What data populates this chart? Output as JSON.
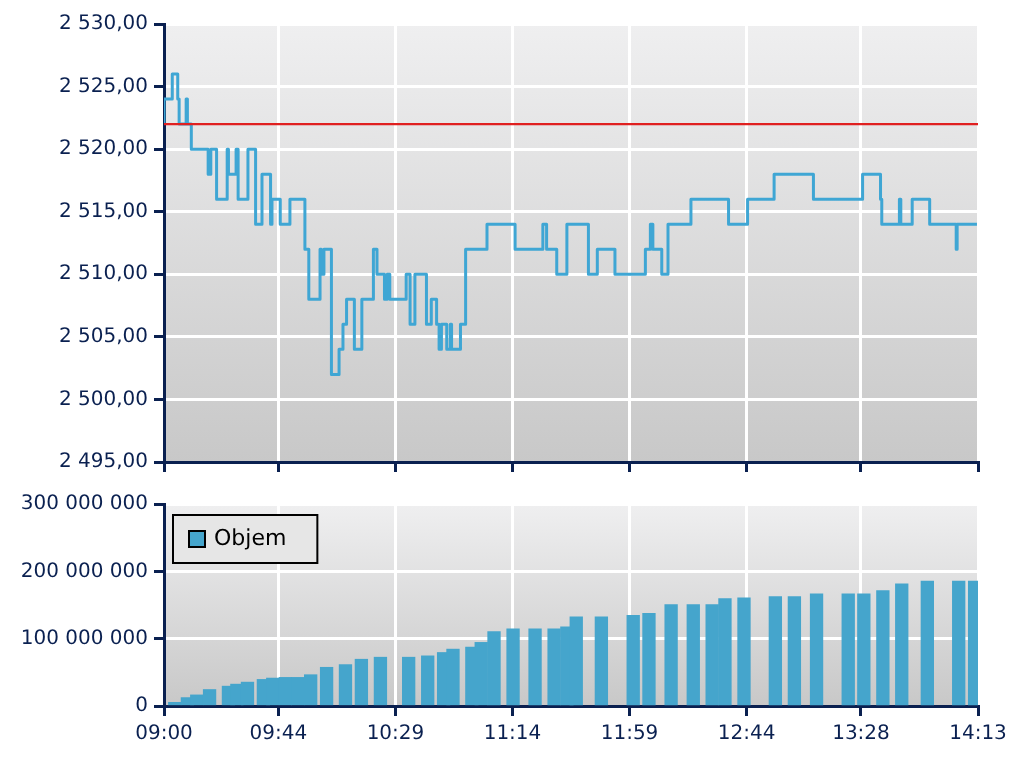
{
  "chart_data": [
    {
      "type": "step",
      "color": "#3fa6d4",
      "marker": "none",
      "grid": true,
      "tick_labels": "y",
      "x": [
        9.0,
        9.053,
        9.088,
        9.097,
        9.142,
        9.15,
        9.175,
        9.283,
        9.3,
        9.337,
        9.405,
        9.413,
        9.462,
        9.475,
        9.538,
        9.587,
        9.628,
        9.683,
        9.692,
        9.745,
        9.807,
        9.903,
        9.928,
        10.0,
        10.008,
        10.025,
        10.073,
        10.122,
        10.147,
        10.17,
        10.22,
        10.268,
        10.342,
        10.365,
        10.413,
        10.43,
        10.447,
        10.552,
        10.577,
        10.608,
        10.682,
        10.713,
        10.747,
        10.763,
        10.778,
        10.812,
        10.835,
        10.843,
        10.9,
        10.933,
        11.07,
        11.25,
        11.428,
        11.452,
        11.517,
        11.582,
        11.72,
        11.777,
        11.89,
        12.085,
        12.117,
        12.133,
        12.19,
        12.23,
        12.377,
        12.618,
        12.74,
        12.91,
        13.162,
        13.477,
        13.592,
        13.6,
        13.713,
        13.722,
        13.795,
        13.907,
        14.077,
        14.083,
        14.125,
        14.21
      ],
      "values": [
        2522,
        2524,
        2526,
        2524,
        2522,
        2524,
        2522,
        2520,
        2518,
        2520,
        2516,
        2520,
        2518,
        2520,
        2516,
        2520,
        2514,
        2518,
        2514,
        2516,
        2514,
        2516,
        2512,
        2508,
        2512,
        2510,
        2512,
        2502,
        2504,
        2506,
        2508,
        2504,
        2508,
        2512,
        2510,
        2508,
        2510,
        2508,
        2510,
        2506,
        2510,
        2506,
        2508,
        2506,
        2504,
        2506,
        2504,
        2506,
        2504,
        2506,
        2512,
        2514,
        2512,
        2514,
        2512,
        2510,
        2514,
        2510,
        2512,
        2510,
        2512,
        2514,
        2512,
        2510,
        2514,
        2516,
        2514,
        2516,
        2518,
        2516,
        2518,
        2516,
        2514,
        2516,
        2514,
        2516,
        2514,
        2512,
        2514,
        2514
      ],
      "xlim": [
        9,
        14.2167
      ],
      "xticks": [
        {
          "value": 9,
          "label": null
        },
        {
          "value": 9.7333,
          "label": null
        },
        {
          "value": 10.4833,
          "label": null
        },
        {
          "value": 11.2333,
          "label": null
        },
        {
          "value": 11.9833,
          "label": null
        },
        {
          "value": 12.7333,
          "label": null
        },
        {
          "value": 13.4667,
          "label": null
        },
        {
          "value": 14.2167,
          "label": null
        }
      ],
      "ylim": [
        2495,
        2530
      ],
      "yticks": [
        {
          "value": 2495,
          "label": "2 495,00"
        },
        {
          "value": 2500,
          "label": "2 500,00"
        },
        {
          "value": 2505,
          "label": "2 505,00"
        },
        {
          "value": 2510,
          "label": "2 510,00"
        },
        {
          "value": 2515,
          "label": "2 515,00"
        },
        {
          "value": 2520,
          "label": "2 520,00"
        },
        {
          "value": 2525,
          "label": "2 525,00"
        },
        {
          "value": 2530,
          "label": "2 530,00"
        }
      ],
      "ref_lines": [
        {
          "axis": "y",
          "value": 2522,
          "color": "#e02020"
        }
      ]
    },
    {
      "type": "bar",
      "grid": true,
      "legend": "top left",
      "x": [
        9.069,
        9.15,
        9.21,
        9.292,
        9.413,
        9.467,
        9.535,
        9.637,
        9.697,
        9.778,
        9.858,
        9.94,
        10.042,
        10.163,
        10.265,
        10.387,
        10.568,
        10.69,
        10.792,
        10.852,
        10.973,
        11.033,
        11.115,
        11.237,
        11.378,
        11.5,
        11.582,
        11.642,
        11.803,
        12.007,
        12.108,
        12.25,
        12.392,
        12.513,
        12.595,
        12.717,
        12.918,
        13.04,
        13.182,
        13.385,
        13.485,
        13.607,
        13.728,
        13.892,
        14.093,
        14.195
      ],
      "series": [
        {
          "name": "Objem",
          "color": "#45a5cc",
          "values": [
            5000000,
            12000000,
            16000000,
            24000000,
            29000000,
            32000000,
            35000000,
            39000000,
            41000000,
            42000000,
            42000000,
            46000000,
            57000000,
            61000000,
            69000000,
            72000000,
            72000000,
            74000000,
            79000000,
            84000000,
            87000000,
            94000000,
            110000000,
            114000000,
            114000000,
            114000000,
            117000000,
            132000000,
            132000000,
            134000000,
            137000000,
            150000000,
            150000000,
            150000000,
            159000000,
            160000000,
            162000000,
            162000000,
            166000000,
            166000000,
            166000000,
            171000000,
            181000000,
            185000000,
            185000000,
            185000000
          ]
        }
      ],
      "xlim": [
        9,
        14.2167
      ],
      "xticks": [
        {
          "value": 9,
          "label": "09:00"
        },
        {
          "value": 9.7333,
          "label": "09:44"
        },
        {
          "value": 10.4833,
          "label": "10:29"
        },
        {
          "value": 11.2333,
          "label": "11:14"
        },
        {
          "value": 11.9833,
          "label": "11:59"
        },
        {
          "value": 12.7333,
          "label": "12:44"
        },
        {
          "value": 13.4667,
          "label": "13:28"
        },
        {
          "value": 14.2167,
          "label": "14:13"
        }
      ],
      "ylim": [
        0,
        300000000
      ],
      "yticks": [
        0,
        {
          "value": 100000000,
          "label": "100 000 000"
        },
        {
          "value": 200000000,
          "label": "200 000 000"
        },
        {
          "value": 300000000,
          "label": "300 000 000"
        }
      ]
    }
  ]
}
